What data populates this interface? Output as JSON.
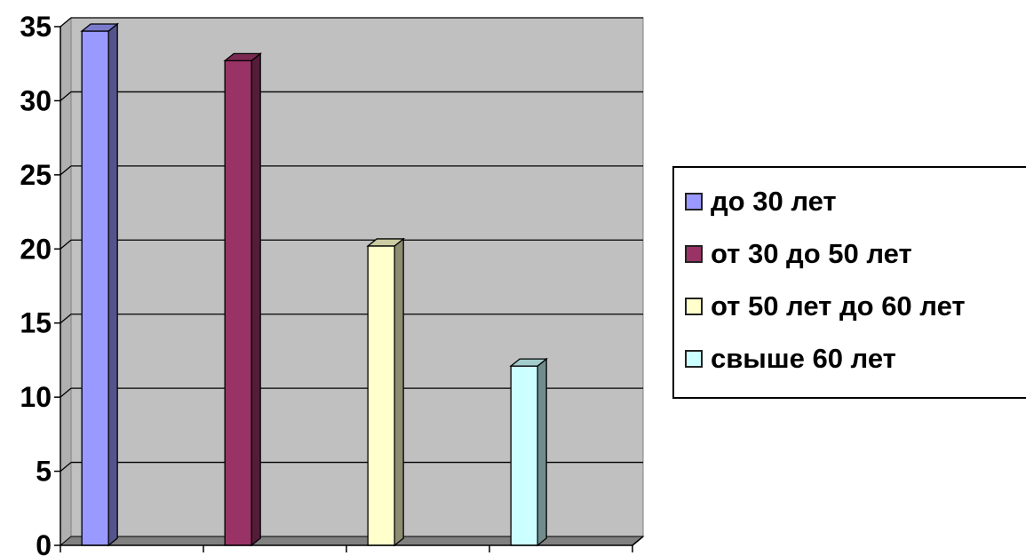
{
  "chart_data": {
    "type": "bar",
    "title": "",
    "xlabel": "",
    "ylabel": "",
    "categories": [
      "до 30 лет",
      "от 30 до 50 лет",
      "от 50 лет до 60 лет",
      "свыше 60 лет"
    ],
    "values": [
      34.7,
      32.7,
      20.2,
      12.1
    ],
    "ylim": [
      0,
      35
    ],
    "yticks": [
      0,
      5,
      10,
      15,
      20,
      25,
      30,
      35
    ],
    "grid": true,
    "style": "3d-column",
    "plot_background": "#c0c0c0",
    "floor_color": "#808080",
    "colors": [
      "#9999ff",
      "#993366",
      "#ffffcc",
      "#ccffff"
    ],
    "legend_position": "right"
  },
  "legend": {
    "items": [
      {
        "label": "до 30 лет",
        "color": "#9999ff"
      },
      {
        "label": "от 30 до 50 лет",
        "color": "#993366"
      },
      {
        "label": "от 50 лет до 60 лет",
        "color": "#ffffcc"
      },
      {
        "label": "свыше 60 лет",
        "color": "#ccffff"
      }
    ]
  }
}
